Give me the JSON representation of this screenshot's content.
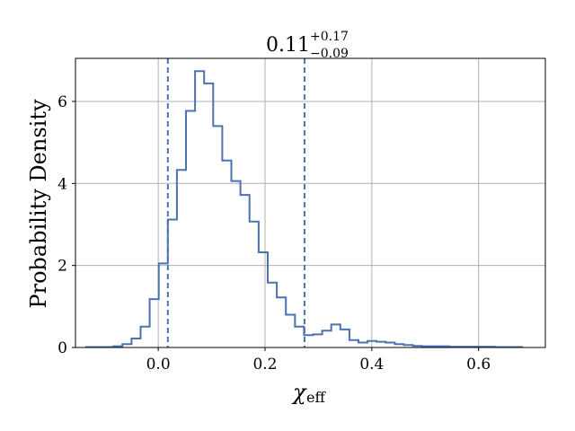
{
  "chart_data": {
    "type": "histogram-step",
    "title": {
      "value": "0.11",
      "upper": "+0.17",
      "lower": "−0.09"
    },
    "xlabel": {
      "symbol": "χ",
      "subscript": "eff"
    },
    "ylabel": "Probability Density",
    "xlim": [
      -0.155,
      0.725
    ],
    "ylim": [
      0,
      7.05
    ],
    "xticks": [
      0.0,
      0.2,
      0.4,
      0.6
    ],
    "xtick_labels": [
      "0.0",
      "0.2",
      "0.4",
      "0.6"
    ],
    "yticks": [
      0,
      2,
      4,
      6
    ],
    "ytick_labels": [
      "0",
      "2",
      "4",
      "6"
    ],
    "grid": true,
    "bin_edges": [
      -0.135,
      -0.118,
      -0.101,
      -0.084,
      -0.067,
      -0.05,
      -0.033,
      -0.016,
      0.001,
      0.018,
      0.035,
      0.052,
      0.069,
      0.086,
      0.103,
      0.12,
      0.137,
      0.154,
      0.171,
      0.188,
      0.205,
      0.222,
      0.239,
      0.256,
      0.273,
      0.29,
      0.307,
      0.324,
      0.341,
      0.358,
      0.375,
      0.392,
      0.409,
      0.426,
      0.443,
      0.46,
      0.477,
      0.494,
      0.511,
      0.528,
      0.545,
      0.562,
      0.579,
      0.596,
      0.613,
      0.63,
      0.647,
      0.664,
      0.681
    ],
    "densities": [
      0.01,
      0.01,
      0.01,
      0.03,
      0.08,
      0.22,
      0.51,
      1.18,
      2.05,
      3.12,
      4.33,
      5.77,
      6.74,
      6.44,
      5.4,
      4.56,
      4.06,
      3.72,
      3.07,
      2.32,
      1.58,
      1.22,
      0.8,
      0.51,
      0.3,
      0.32,
      0.41,
      0.56,
      0.44,
      0.18,
      0.12,
      0.16,
      0.14,
      0.12,
      0.08,
      0.06,
      0.04,
      0.03,
      0.03,
      0.03,
      0.02,
      0.02,
      0.02,
      0.02,
      0.02,
      0.01,
      0.01,
      0.01
    ],
    "vlines": [
      0.018,
      0.274
    ],
    "line_color": "#4c72b0"
  }
}
